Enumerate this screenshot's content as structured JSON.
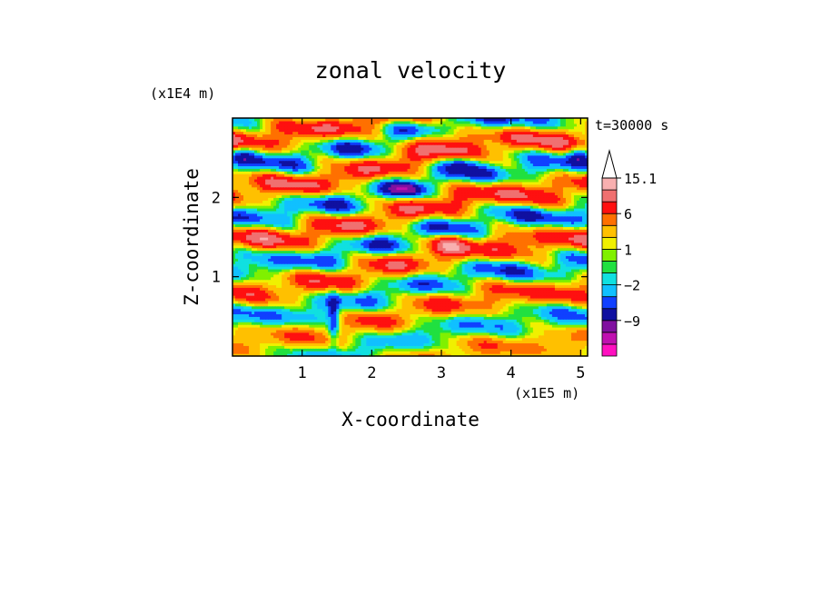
{
  "chart_data": {
    "type": "heatmap",
    "title": "zonal velocity",
    "xlabel": "X-coordinate",
    "ylabel": "Z-coordinate",
    "x_unit": "(x1E5 m)",
    "y_unit": "(x1E4 m)",
    "time_label": "t=30000 s",
    "x_ticks": [
      "1",
      "2",
      "3",
      "4",
      "5"
    ],
    "x_tick_values": [
      1,
      2,
      3,
      4,
      5
    ],
    "y_ticks": [
      "1",
      "2"
    ],
    "y_tick_values": [
      1,
      2
    ],
    "xlim": [
      0,
      5.1
    ],
    "ylim": [
      0,
      3.0
    ],
    "colorbar": {
      "levels": [
        -15,
        -12,
        -9,
        -6,
        -4,
        -2,
        -1,
        0,
        1,
        2,
        4,
        6,
        9,
        12,
        15.1
      ],
      "colors": [
        "#ff10c0",
        "#c010b0",
        "#8010a0",
        "#1010a0",
        "#1040ff",
        "#10c0ff",
        "#10e0e0",
        "#20e040",
        "#80f000",
        "#f0f000",
        "#ffc000",
        "#ff7000",
        "#ff1010",
        "#f07070",
        "#f8b0b0",
        "#ffffff"
      ],
      "tick_labels": [
        "15.1",
        "6",
        "1",
        "−2",
        "−9"
      ],
      "tick_values": [
        15.1,
        6,
        1,
        -2,
        -9
      ]
    }
  }
}
